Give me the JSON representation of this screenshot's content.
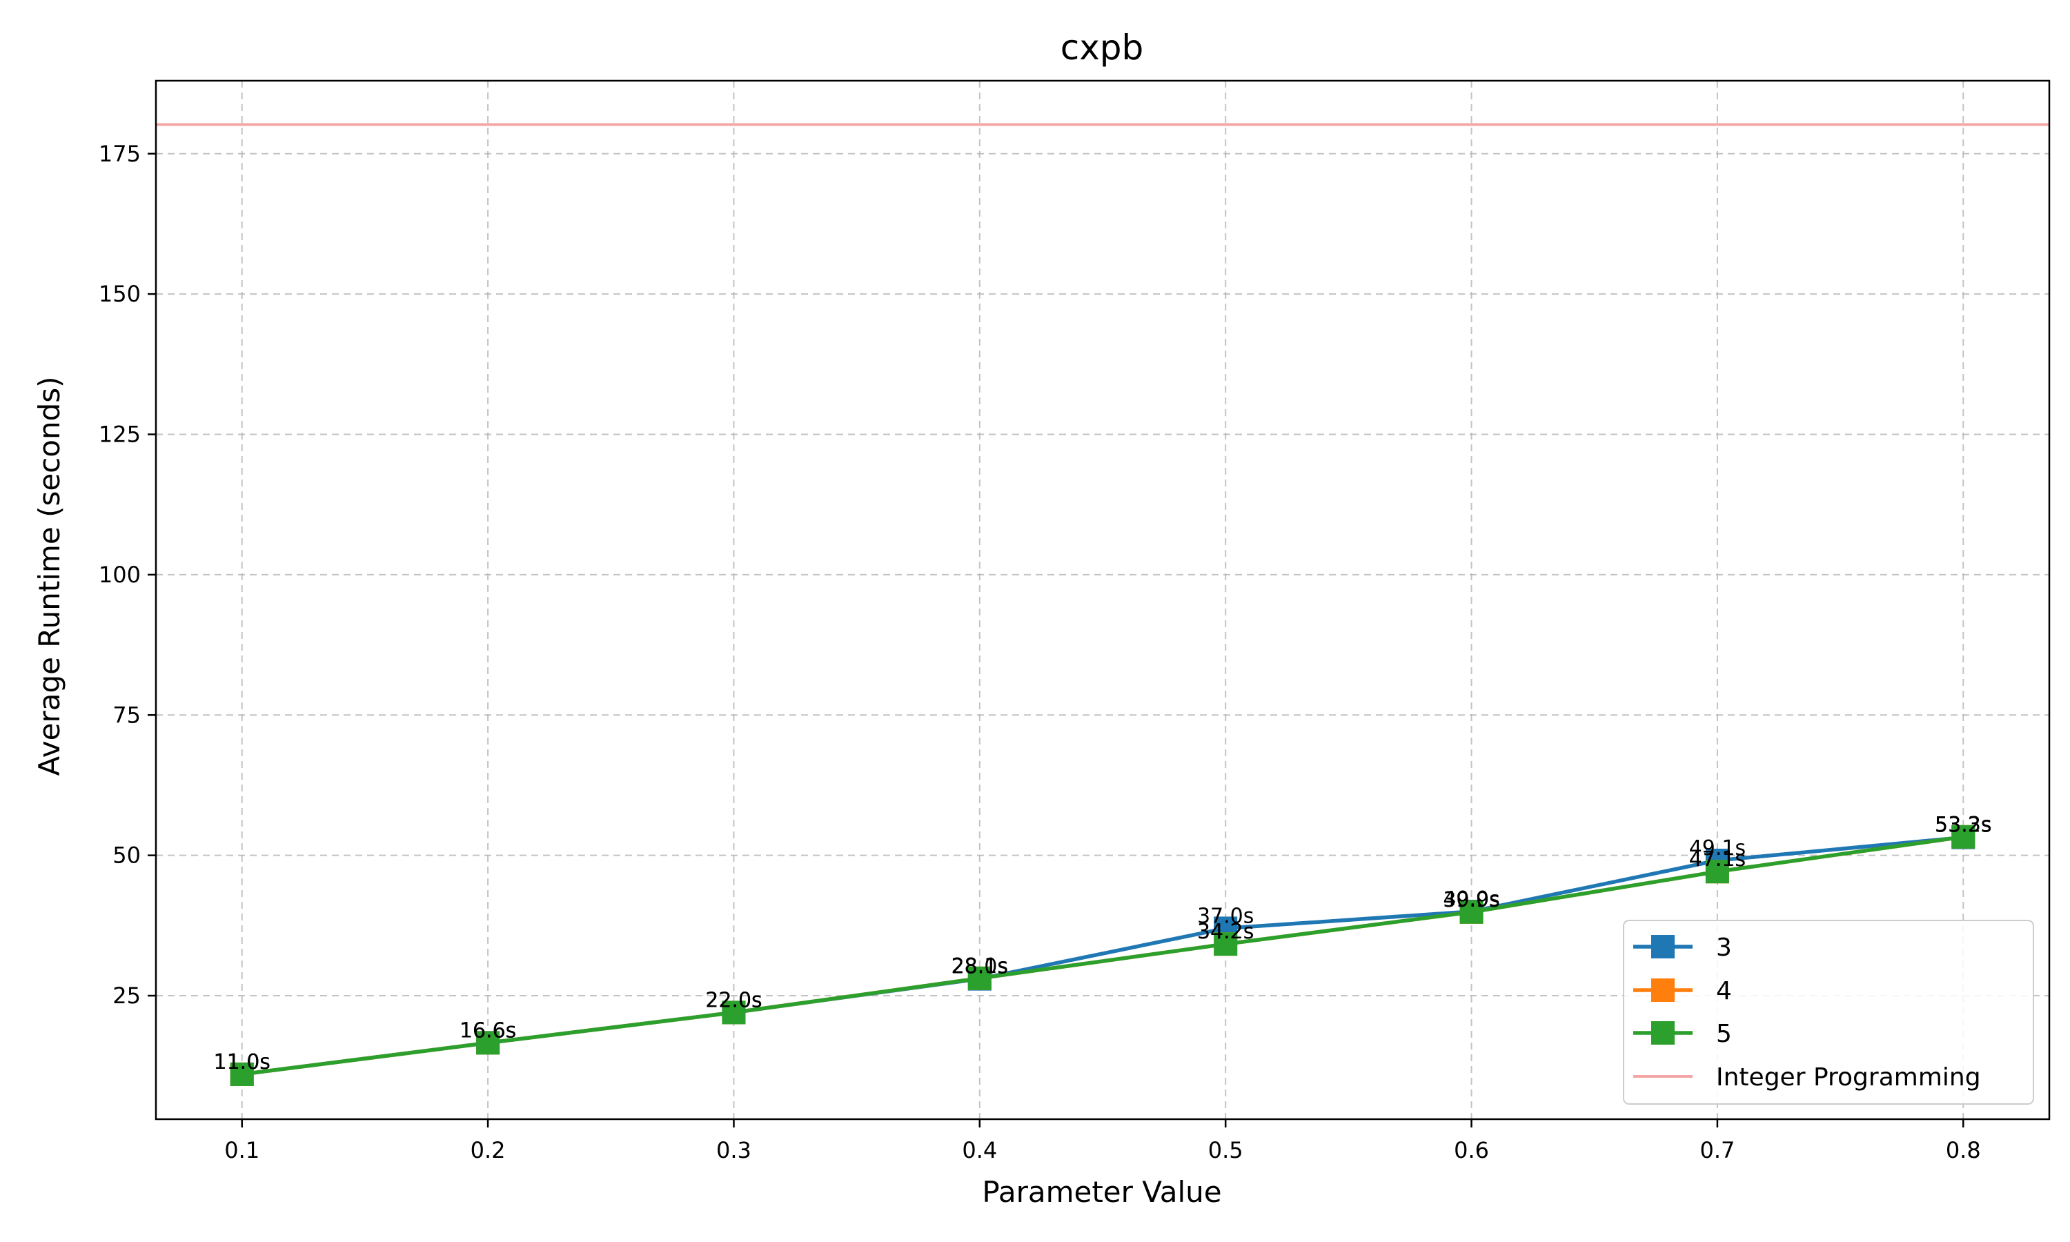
{
  "chart_data": {
    "type": "line",
    "title": "cxpb",
    "xlabel": "Parameter Value",
    "ylabel": "Average Runtime (seconds)",
    "x": [
      0.1,
      0.2,
      0.3,
      0.4,
      0.5,
      0.6,
      0.7,
      0.8
    ],
    "x_tick_labels": [
      "0.1",
      "0.2",
      "0.3",
      "0.4",
      "0.5",
      "0.6",
      "0.7",
      "0.8"
    ],
    "xlim": [
      0.065,
      0.835
    ],
    "ylim": [
      3,
      188
    ],
    "y_ticks": [
      25,
      50,
      75,
      100,
      125,
      150,
      175
    ],
    "grid": true,
    "legend_position": "lower-right",
    "series": [
      {
        "name": "3",
        "color": "#1f77b4",
        "marker": "square",
        "values": [
          11.0,
          16.6,
          22.0,
          28.0,
          37.0,
          40.0,
          49.1,
          53.2
        ],
        "labels": [
          "11.0s",
          "16.6s",
          "22.0s",
          "28.0s",
          "37.0s",
          "40.0s",
          "49.1s",
          "53.2s"
        ]
      },
      {
        "name": "4",
        "color": "#ff7f0e",
        "marker": "square",
        "values": [
          11.0,
          16.6,
          22.0,
          28.1,
          34.2,
          39.9,
          47.1,
          53.3
        ],
        "labels": [
          "11.0s",
          "16.6s",
          "22.0s",
          "28.1s",
          "34.2s",
          "39.9s",
          "47.1s",
          "53.3s"
        ]
      },
      {
        "name": "5",
        "color": "#2ca02c",
        "marker": "square",
        "values": [
          11.0,
          16.6,
          22.0,
          28.1,
          34.2,
          39.9,
          47.1,
          53.3
        ],
        "labels": [
          "11.0s",
          "16.6s",
          "22.0s",
          "28.1s",
          "34.2s",
          "39.9s",
          "47.1s",
          "53.3s"
        ]
      }
    ],
    "reference_line": {
      "name": "Integer Programming",
      "value": 180.2,
      "color": "#f4a6a6"
    }
  }
}
